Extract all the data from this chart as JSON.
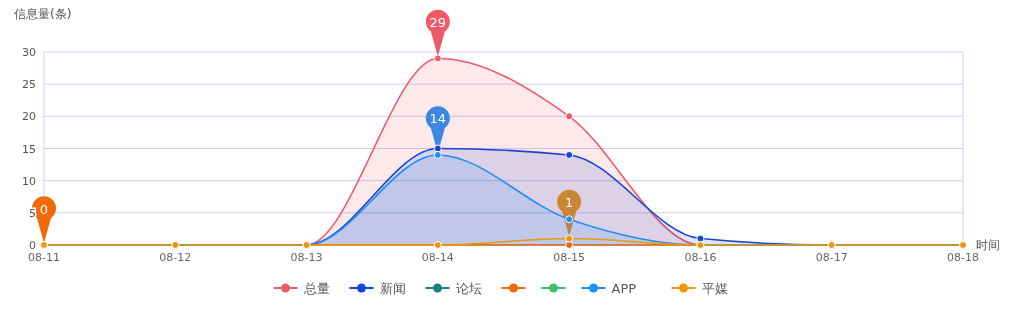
{
  "chart_data": {
    "type": "line",
    "xlabel": "时间",
    "ylabel": "信息量(条)",
    "categories": [
      "08-11",
      "08-12",
      "08-13",
      "08-14",
      "08-15",
      "08-16",
      "08-17",
      "08-18"
    ],
    "series": [
      {
        "name": "总量",
        "type": "area",
        "color": "#ee5a6a",
        "values": [
          0,
          0,
          0,
          29,
          20,
          0,
          0,
          0
        ]
      },
      {
        "name": "新闻",
        "type": "area",
        "color": "#1645d6",
        "values": [
          0,
          0,
          0,
          15,
          14,
          1,
          0,
          0
        ]
      },
      {
        "name": "论坛",
        "color": "#1a7f7f",
        "values": [
          null,
          null,
          null,
          null,
          null,
          null,
          null,
          null
        ]
      },
      {
        "color": "#f06a0a",
        "values": [
          0,
          0,
          0,
          0,
          0,
          0,
          0,
          0
        ]
      },
      {
        "color": "#3bbf73",
        "values": [
          null,
          null,
          null,
          null,
          null,
          null,
          null,
          null
        ]
      },
      {
        "name": "APP",
        "type": "area",
        "color": "#1e8ff5",
        "values": [
          0,
          0,
          0,
          14,
          4,
          0,
          0,
          0
        ]
      },
      {
        "name": "平媒",
        "color": "#e89a0a",
        "values": [
          0,
          0,
          0,
          0,
          1,
          0,
          0,
          0
        ]
      }
    ],
    "annotations": [
      {
        "text": "29",
        "x": "08-14",
        "y": 29
      },
      {
        "text": "14",
        "x": "08-14",
        "y": 14
      },
      {
        "text": "1",
        "x": "08-15",
        "y": 1
      },
      {
        "text": "0",
        "x": "08-11",
        "y": 0
      }
    ],
    "ylim": [
      0,
      30
    ],
    "yticks": [
      0,
      5,
      10,
      15,
      20,
      25,
      30
    ],
    "grid": "y",
    "legend": "bottom",
    "marker": "circle",
    "line_style": "solid"
  }
}
